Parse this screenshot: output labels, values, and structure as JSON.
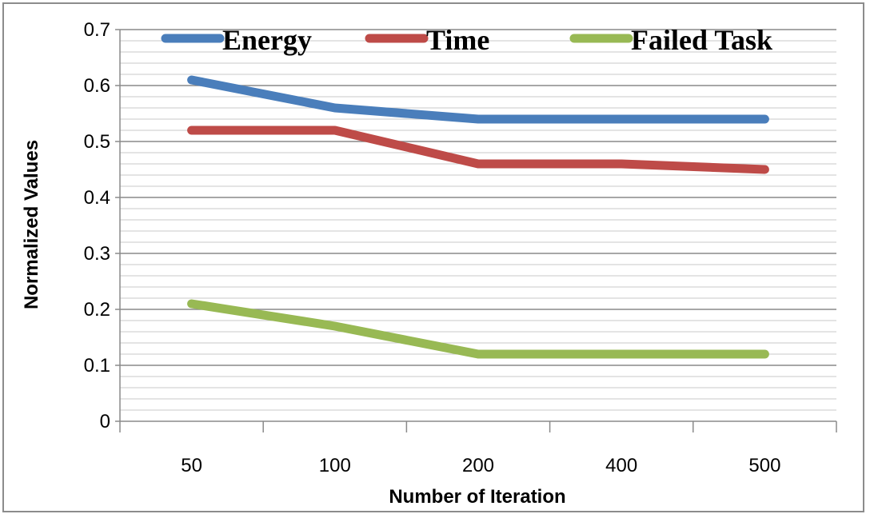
{
  "chart_data": {
    "type": "line",
    "categories": [
      "50",
      "100",
      "200",
      "400",
      "500"
    ],
    "series": [
      {
        "name": "Energy",
        "values": [
          0.61,
          0.56,
          0.54,
          0.54,
          0.54
        ],
        "color": "#4a7ebb"
      },
      {
        "name": "Time",
        "values": [
          0.52,
          0.52,
          0.46,
          0.46,
          0.45
        ],
        "color": "#be4b48"
      },
      {
        "name": "Failed Task",
        "values": [
          0.21,
          0.17,
          0.12,
          0.12,
          0.12
        ],
        "color": "#98b954"
      }
    ],
    "xlabel": "Number of Iteration",
    "ylabel": "Normalized Values",
    "ylim": [
      0,
      0.7
    ],
    "yticks": [
      "0",
      "0.1",
      "0.2",
      "0.3",
      "0.4",
      "0.5",
      "0.6",
      "0.7"
    ],
    "grid": "horizontal major and minor",
    "legend": "top"
  }
}
